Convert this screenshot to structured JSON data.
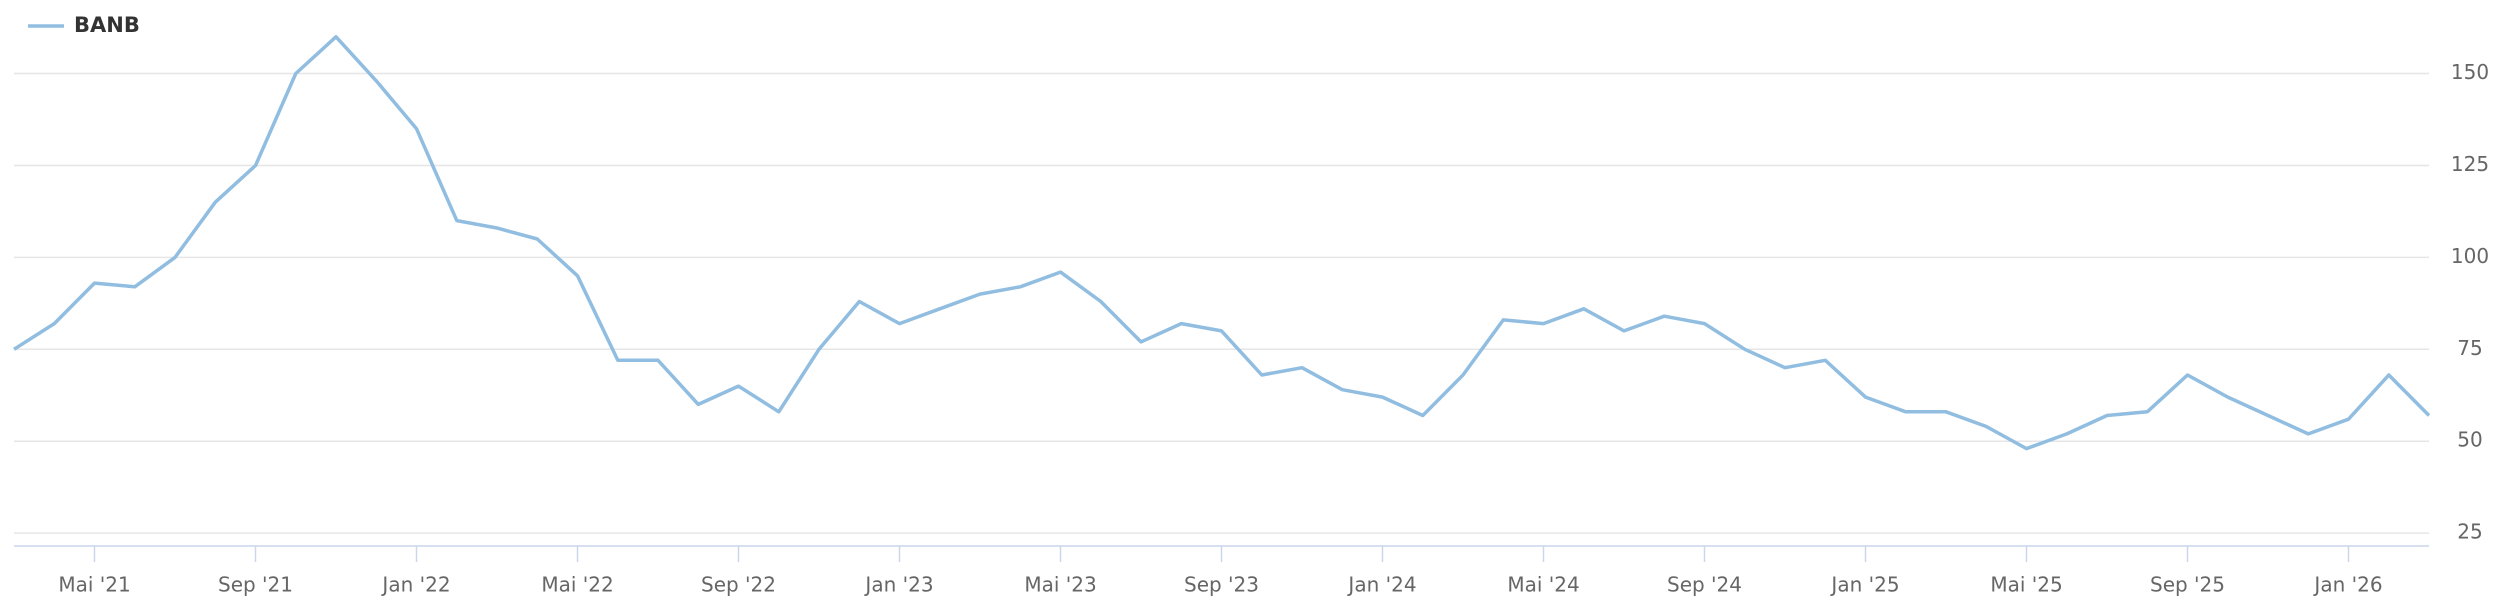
{
  "chart_data": {
    "type": "line",
    "categories": [
      null,
      null,
      "Mai '21",
      null,
      null,
      null,
      "Sep '21",
      null,
      null,
      null,
      "Jan '22",
      null,
      null,
      null,
      "Mai '22",
      null,
      null,
      null,
      "Sep '22",
      null,
      null,
      null,
      "Jan '23",
      null,
      null,
      null,
      "Mai '23",
      null,
      null,
      null,
      "Sep '23",
      null,
      null,
      null,
      "Jan '24",
      null,
      null,
      null,
      "Mai '24",
      null,
      null,
      null,
      "Sep '24",
      null,
      null,
      null,
      "Jan '25",
      null,
      null,
      null,
      "Mai '25",
      null,
      null,
      null,
      "Sep '25",
      null,
      null,
      null,
      "Jan '26",
      null,
      null
    ],
    "series": [
      {
        "name": "BANB",
        "color": "#90bde0",
        "values": [
          75,
          82,
          93,
          92,
          100,
          115,
          125,
          150,
          160,
          148,
          135,
          110,
          108,
          105,
          95,
          72,
          72,
          60,
          65,
          58,
          75,
          88,
          82,
          86,
          90,
          92,
          96,
          88,
          77,
          82,
          80,
          68,
          70,
          64,
          62,
          57,
          68,
          83,
          82,
          86,
          80,
          84,
          82,
          75,
          70,
          72,
          62,
          58,
          58,
          54,
          48,
          52,
          57,
          58,
          68,
          62,
          57,
          52,
          56,
          68,
          57
        ]
      }
    ],
    "ylim": [
      21.5,
      170
    ],
    "yticks": [
      25,
      50,
      75,
      100,
      125,
      150
    ],
    "grid": true,
    "legend": "top-left"
  }
}
